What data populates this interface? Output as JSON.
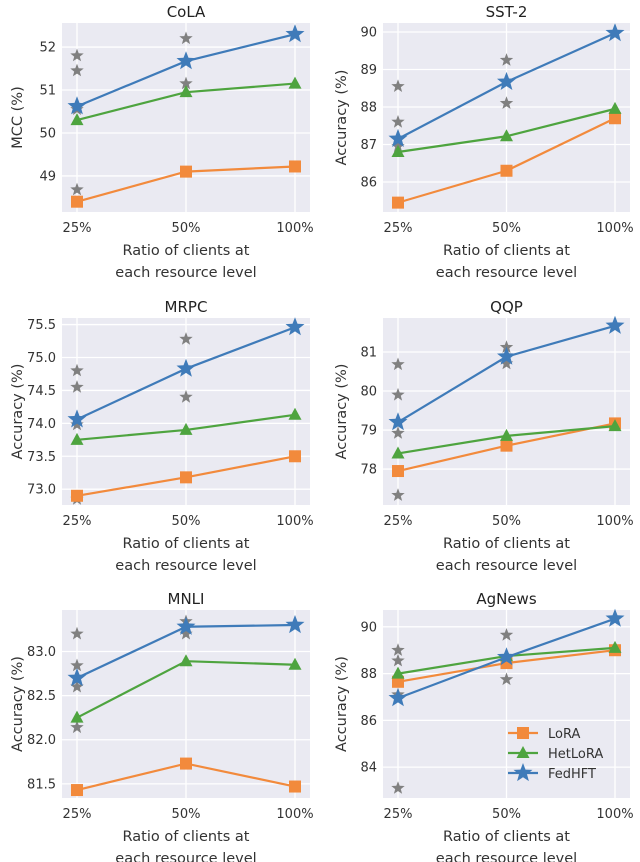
{
  "colors": {
    "background": "#eaeaf2",
    "grid": "#ffffff",
    "LoRA": "#f28a3c",
    "HetLoRA": "#4ea43f",
    "FedHFT": "#3f7bb9",
    "baseline_stars": "#808080"
  },
  "legend": {
    "placement": "lower-right",
    "panel": 5,
    "entries": [
      {
        "name": "LoRA",
        "marker": "square"
      },
      {
        "name": "HetLoRA",
        "marker": "triangle"
      },
      {
        "name": "FedHFT",
        "marker": "star"
      }
    ]
  },
  "chart_data": [
    {
      "type": "line",
      "title": "CoLA",
      "xlabel": [
        "Ratio of clients at",
        "each resource level"
      ],
      "ylabel": "MCC (%)",
      "categories": [
        "25%",
        "50%",
        "100%"
      ],
      "yticks": [
        "49",
        "50",
        "51",
        "52"
      ],
      "ylim": [
        48.16,
        52.56
      ],
      "grid": true,
      "series": [
        {
          "name": "LoRA",
          "values": [
            48.4,
            49.1,
            49.22
          ]
        },
        {
          "name": "HetLoRA",
          "values": [
            50.3,
            50.95,
            51.15
          ]
        },
        {
          "name": "FedHFT",
          "values": [
            50.62,
            51.67,
            52.3
          ]
        }
      ],
      "extra_points": [
        [
          0,
          51.8
        ],
        [
          0,
          51.45
        ],
        [
          0,
          50.55
        ],
        [
          0,
          48.68
        ],
        [
          1,
          52.2
        ],
        [
          1,
          51.15
        ]
      ]
    },
    {
      "type": "line",
      "title": "SST-2",
      "xlabel": [
        "Ratio of clients at",
        "each resource level"
      ],
      "ylabel": "Accuracy (%)",
      "categories": [
        "25%",
        "50%",
        "100%"
      ],
      "yticks": [
        "86",
        "87",
        "88",
        "89",
        "90"
      ],
      "ylim": [
        85.2,
        90.24
      ],
      "grid": true,
      "series": [
        {
          "name": "LoRA",
          "values": [
            85.45,
            86.3,
            87.7
          ]
        },
        {
          "name": "HetLoRA",
          "values": [
            86.8,
            87.22,
            87.95
          ]
        },
        {
          "name": "FedHFT",
          "values": [
            87.15,
            88.67,
            89.97
          ]
        }
      ],
      "extra_points": [
        [
          0,
          88.55
        ],
        [
          0,
          87.6
        ],
        [
          0,
          86.95
        ],
        [
          1,
          89.25
        ],
        [
          1,
          88.1
        ]
      ]
    },
    {
      "type": "line",
      "title": "MRPC",
      "xlabel": [
        "Ratio of clients at",
        "each resource level"
      ],
      "ylabel": "Accuracy (%)",
      "categories": [
        "25%",
        "50%",
        "100%"
      ],
      "yticks": [
        "73.0",
        "73.5",
        "74.0",
        "74.5",
        "75.0",
        "75.5"
      ],
      "ylim": [
        72.76,
        75.6
      ],
      "grid": true,
      "series": [
        {
          "name": "LoRA",
          "values": [
            72.9,
            73.18,
            73.5
          ]
        },
        {
          "name": "HetLoRA",
          "values": [
            73.75,
            73.9,
            74.13
          ]
        },
        {
          "name": "FedHFT",
          "values": [
            74.06,
            74.83,
            75.46
          ]
        }
      ],
      "extra_points": [
        [
          0,
          74.8
        ],
        [
          0,
          74.55
        ],
        [
          0,
          73.98
        ],
        [
          0,
          72.85
        ],
        [
          1,
          75.28
        ],
        [
          1,
          74.4
        ]
      ]
    },
    {
      "type": "line",
      "title": "QQP",
      "xlabel": [
        "Ratio of clients at",
        "each resource level"
      ],
      "ylabel": "Accuracy (%)",
      "categories": [
        "25%",
        "50%",
        "100%"
      ],
      "yticks": [
        "78",
        "79",
        "80",
        "81"
      ],
      "ylim": [
        77.08,
        81.87
      ],
      "grid": true,
      "series": [
        {
          "name": "LoRA",
          "values": [
            77.95,
            78.6,
            79.17
          ]
        },
        {
          "name": "HetLoRA",
          "values": [
            78.4,
            78.85,
            79.1
          ]
        },
        {
          "name": "FedHFT",
          "values": [
            79.2,
            80.88,
            81.67
          ]
        }
      ],
      "extra_points": [
        [
          0,
          80.68
        ],
        [
          0,
          79.9
        ],
        [
          0,
          78.92
        ],
        [
          0,
          77.33
        ],
        [
          1,
          81.12
        ],
        [
          1,
          80.7
        ]
      ]
    },
    {
      "type": "line",
      "title": "MNLI",
      "xlabel": [
        "Ratio of clients at",
        "each resource level"
      ],
      "ylabel": "Accuracy (%)",
      "categories": [
        "25%",
        "50%",
        "100%"
      ],
      "yticks": [
        "81.5",
        "82.0",
        "82.5",
        "83.0"
      ],
      "ylim": [
        81.34,
        83.47
      ],
      "grid": true,
      "series": [
        {
          "name": "LoRA",
          "values": [
            81.43,
            81.73,
            81.47
          ]
        },
        {
          "name": "HetLoRA",
          "values": [
            82.25,
            82.89,
            82.85
          ]
        },
        {
          "name": "FedHFT",
          "values": [
            82.7,
            83.28,
            83.3
          ]
        }
      ],
      "extra_points": [
        [
          0,
          83.2
        ],
        [
          0,
          82.84
        ],
        [
          0,
          82.6
        ],
        [
          0,
          82.14
        ],
        [
          1,
          83.34
        ],
        [
          1,
          83.2
        ]
      ]
    },
    {
      "type": "line",
      "title": "AgNews",
      "xlabel": [
        "Ratio of clients at",
        "each resource level"
      ],
      "ylabel": "Accuracy (%)",
      "categories": [
        "25%",
        "50%",
        "100%"
      ],
      "yticks": [
        "84",
        "86",
        "88",
        "90"
      ],
      "ylim": [
        82.68,
        90.72
      ],
      "grid": true,
      "series": [
        {
          "name": "LoRA",
          "values": [
            87.65,
            88.45,
            89.0
          ]
        },
        {
          "name": "HetLoRA",
          "values": [
            88.0,
            88.75,
            89.1
          ]
        },
        {
          "name": "FedHFT",
          "values": [
            86.95,
            88.7,
            90.35
          ]
        }
      ],
      "extra_points": [
        [
          0,
          89.0
        ],
        [
          0,
          88.55
        ],
        [
          0,
          87.1
        ],
        [
          0,
          83.1
        ],
        [
          1,
          89.65
        ],
        [
          1,
          87.75
        ]
      ]
    }
  ]
}
